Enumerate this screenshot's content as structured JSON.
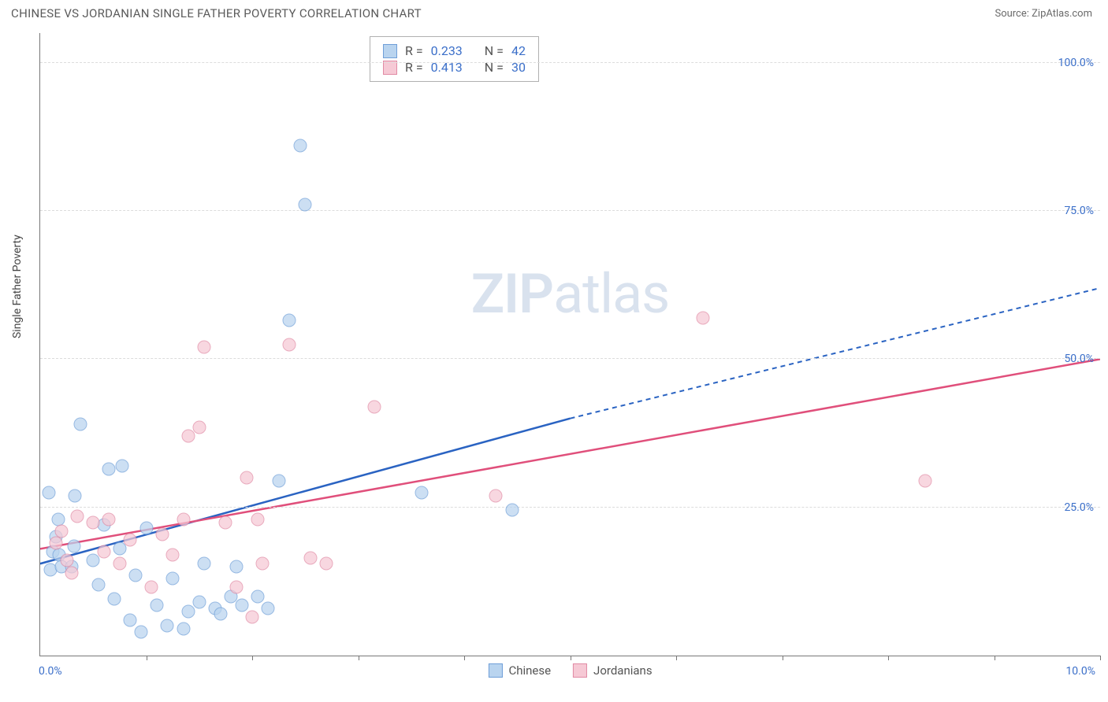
{
  "header": {
    "title": "CHINESE VS JORDANIAN SINGLE FATHER POVERTY CORRELATION CHART",
    "source": "Source: ZipAtlas.com"
  },
  "chart": {
    "type": "scatter",
    "ylabel": "Single Father Poverty",
    "xlim": [
      0,
      10
    ],
    "ylim": [
      0,
      105
    ],
    "ygrid": [
      25,
      50,
      75,
      100
    ],
    "ytick_labels": [
      "25.0%",
      "50.0%",
      "75.0%",
      "100.0%"
    ],
    "xticks": [
      1,
      2,
      3,
      4,
      5,
      6,
      7,
      8,
      9,
      10
    ],
    "xmin_label": "0.0%",
    "xmax_label": "10.0%",
    "background_color": "#ffffff",
    "grid_color": "#dcdcdc",
    "axis_color": "#777777",
    "watermark": {
      "zip": "ZIP",
      "atlas": "atlas"
    },
    "series": [
      {
        "name": "Chinese",
        "fill": "#b9d4ef",
        "stroke": "#6f9fd8",
        "line_color": "#2a63c2",
        "r_value": "0.233",
        "n_value": "42",
        "trend": {
          "x1": 0,
          "y1": 15.5,
          "x2": 5.0,
          "y2": 40,
          "ext_x2": 10.0,
          "ext_y2": 62
        },
        "points": [
          [
            0.08,
            27.5
          ],
          [
            0.1,
            14.5
          ],
          [
            0.12,
            17.5
          ],
          [
            0.15,
            20.0
          ],
          [
            0.17,
            23.0
          ],
          [
            0.18,
            17.0
          ],
          [
            0.2,
            15.0
          ],
          [
            0.3,
            15.0
          ],
          [
            0.32,
            18.5
          ],
          [
            0.33,
            27.0
          ],
          [
            0.38,
            39.0
          ],
          [
            0.5,
            16.0
          ],
          [
            0.55,
            12.0
          ],
          [
            0.6,
            22.0
          ],
          [
            0.65,
            31.5
          ],
          [
            0.7,
            9.5
          ],
          [
            0.75,
            18.0
          ],
          [
            0.77,
            32.0
          ],
          [
            0.85,
            6.0
          ],
          [
            0.9,
            13.5
          ],
          [
            0.95,
            4.0
          ],
          [
            1.0,
            21.5
          ],
          [
            1.1,
            8.5
          ],
          [
            1.2,
            5.0
          ],
          [
            1.25,
            13.0
          ],
          [
            1.35,
            4.5
          ],
          [
            1.4,
            7.5
          ],
          [
            1.5,
            9.0
          ],
          [
            1.55,
            15.5
          ],
          [
            1.65,
            8.0
          ],
          [
            1.7,
            7.0
          ],
          [
            1.8,
            10.0
          ],
          [
            1.85,
            15.0
          ],
          [
            1.9,
            8.5
          ],
          [
            2.05,
            10.0
          ],
          [
            2.15,
            8.0
          ],
          [
            2.25,
            29.5
          ],
          [
            2.35,
            56.5
          ],
          [
            2.45,
            86.0
          ],
          [
            2.5,
            76.0
          ],
          [
            3.6,
            27.5
          ],
          [
            4.45,
            24.5
          ]
        ]
      },
      {
        "name": "Jordanians",
        "fill": "#f6c9d5",
        "stroke": "#e18aa4",
        "line_color": "#e04f7b",
        "r_value": "0.413",
        "n_value": "30",
        "trend": {
          "x1": 0,
          "y1": 18.0,
          "x2": 10.0,
          "y2": 50,
          "ext_x2": 10.0,
          "ext_y2": 50
        },
        "points": [
          [
            0.15,
            19.0
          ],
          [
            0.2,
            21.0
          ],
          [
            0.25,
            16.0
          ],
          [
            0.3,
            14.0
          ],
          [
            0.35,
            23.5
          ],
          [
            0.5,
            22.5
          ],
          [
            0.6,
            17.5
          ],
          [
            0.65,
            23.0
          ],
          [
            0.75,
            15.5
          ],
          [
            0.85,
            19.5
          ],
          [
            1.05,
            11.5
          ],
          [
            1.15,
            20.5
          ],
          [
            1.25,
            17.0
          ],
          [
            1.35,
            23.0
          ],
          [
            1.4,
            37.0
          ],
          [
            1.5,
            38.5
          ],
          [
            1.55,
            52.0
          ],
          [
            1.75,
            22.5
          ],
          [
            1.85,
            11.5
          ],
          [
            1.95,
            30.0
          ],
          [
            2.0,
            6.5
          ],
          [
            2.05,
            23.0
          ],
          [
            2.1,
            15.5
          ],
          [
            2.35,
            52.5
          ],
          [
            2.55,
            16.5
          ],
          [
            2.7,
            15.5
          ],
          [
            3.15,
            42.0
          ],
          [
            4.3,
            27.0
          ],
          [
            6.25,
            57.0
          ],
          [
            8.35,
            29.5
          ]
        ]
      }
    ],
    "legend_labels": {
      "r": "R =",
      "n": "N =",
      "chinese": "Chinese",
      "jordanians": "Jordanians"
    }
  }
}
